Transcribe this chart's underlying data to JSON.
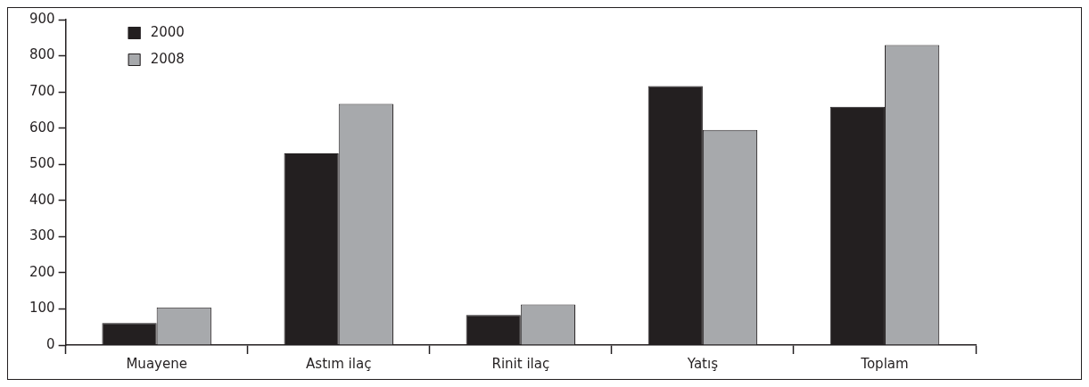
{
  "chart_data": {
    "type": "bar",
    "categories": [
      "Muayene",
      "Astım ilaç",
      "Rinit ilaç",
      "Yatış",
      "Toplam"
    ],
    "series": [
      {
        "name": "2000",
        "color": "#231f20",
        "values": [
          61,
          530,
          83,
          716,
          659
        ]
      },
      {
        "name": "2008",
        "color": "#a7a9ac",
        "values": [
          104,
          667,
          112,
          595,
          830
        ]
      }
    ],
    "ylim": [
      0,
      900
    ],
    "yticks": [
      0,
      100,
      200,
      300,
      400,
      500,
      600,
      700,
      800,
      900
    ],
    "grid": false,
    "legend": "top left"
  }
}
